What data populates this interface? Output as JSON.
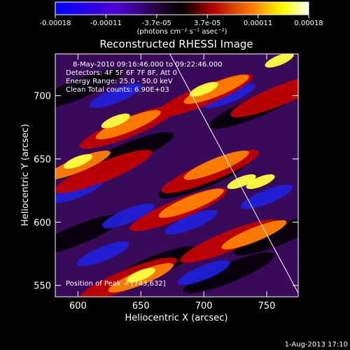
{
  "colorbar": {
    "ticks": [
      "-0.00018",
      "-0.00011",
      "-3.7e-05",
      "3.7e-05",
      "0.00011",
      "0.00018"
    ],
    "units": "(photons cm⁻² s⁻¹ asec⁻²)",
    "range": [
      -0.00018,
      0.00018
    ]
  },
  "chart_data": {
    "type": "heatmap",
    "title": "Reconstructed RHESSI Image",
    "xlabel": "Heliocentric X (arcsec)",
    "ylabel": "Heliocentric Y (arcsec)",
    "xlim": [
      582,
      775
    ],
    "ylim": [
      541,
      733
    ],
    "xticks": [
      600,
      650,
      700,
      750
    ],
    "yticks": [
      550,
      600,
      650,
      700
    ],
    "annotations": [
      "8-May-2010 09:16:46.000 to 09:22:46.000",
      "Detectors: 4F 5F 6F 7F 8F, Att 0",
      "Energy Range: 25.0 - 50.0 keV",
      "Clean     Total counts: 6.90E+03"
    ],
    "peak_label": "Position of Peak = [743,632]",
    "peak": [
      743,
      632
    ],
    "limb_line": [
      [
        673,
        733
      ],
      [
        775,
        544
      ]
    ]
  },
  "footer": {
    "date": "1-Aug-2013 17:10"
  },
  "colors": {
    "background": "#000000",
    "colormap": [
      "#000000",
      "#0000ff",
      "#6600cc",
      "#330044",
      "#000000",
      "#cc0000",
      "#ff8000",
      "#ffff00",
      "#ffffff"
    ]
  }
}
